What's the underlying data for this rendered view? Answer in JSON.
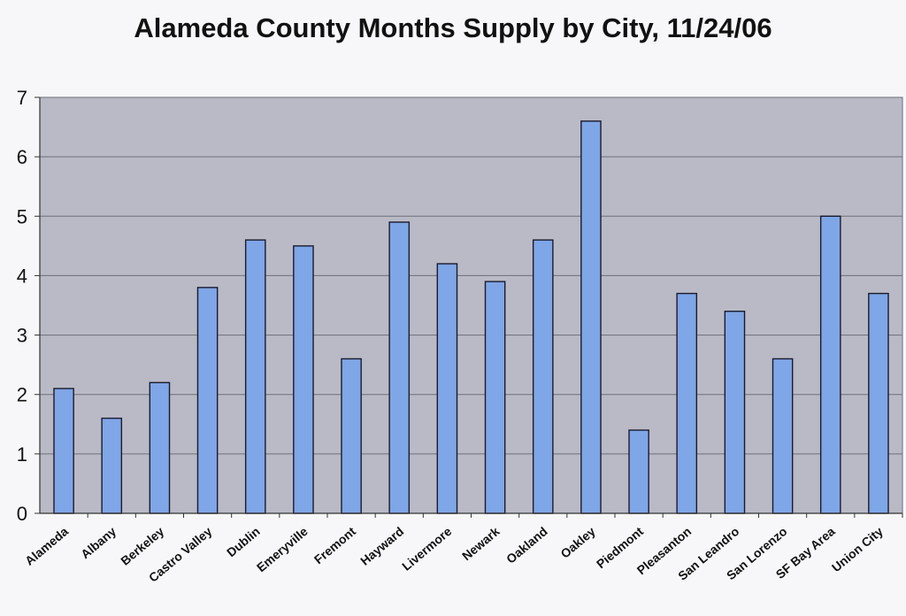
{
  "chart_data": {
    "type": "bar",
    "title": "Alameda County Months Supply by City, 11/24/06",
    "xlabel": "",
    "ylabel": "",
    "categories": [
      "Alameda",
      "Albany",
      "Berkeley",
      "Castro Valley",
      "Dublin",
      "Emeryville",
      "Fremont",
      "Hayward",
      "Livermore",
      "Newark",
      "Oakland",
      "Oakley",
      "Piedmont",
      "Pleasanton",
      "San Leandro",
      "San Lorenzo",
      "SF Bay Area",
      "Union City"
    ],
    "values": [
      2.1,
      1.6,
      2.2,
      3.8,
      4.6,
      4.5,
      2.6,
      4.9,
      4.2,
      3.9,
      4.6,
      6.6,
      1.4,
      3.7,
      3.4,
      2.6,
      5.0,
      3.7
    ],
    "ylim": [
      0,
      7
    ],
    "yticks": [
      "0",
      "1",
      "2",
      "3",
      "4",
      "5",
      "6",
      "7"
    ],
    "grid": true,
    "legend": "none",
    "colors": {
      "bar_fill": "#7fa6e6",
      "bar_stroke": "#1a1a2e",
      "plot_bg": "#b9bac5",
      "grid": "#6e6f7a"
    }
  }
}
